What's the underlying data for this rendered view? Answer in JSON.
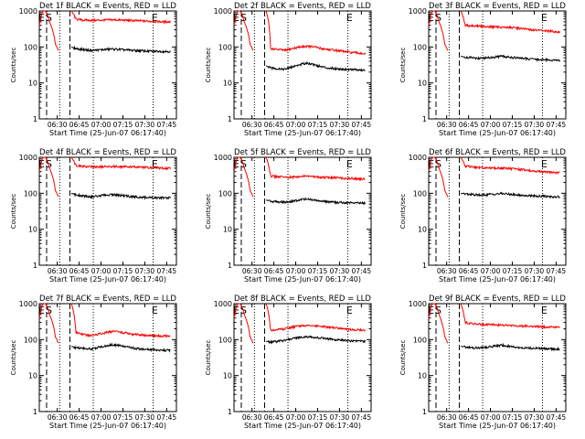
{
  "shared": {
    "ylabel": "Counts/sec",
    "xlabel": "Start Time (25-Jun-07 06:17:40)",
    "x_tick_labels": [
      "06:30",
      "06:45",
      "07:00",
      "07:15",
      "07:30",
      "07:45"
    ],
    "y_tick_labels": [
      "1",
      "10",
      "100",
      "1000"
    ],
    "marker_labels": {
      "start": "S",
      "end": "E",
      "left": "E"
    },
    "series_colors": {
      "events": "#000000",
      "lld": "#ff0000"
    }
  },
  "chart_data": [
    {
      "type": "line",
      "title": "Det 1f BLACK = Events, RED = LLD",
      "x_unit": "minutes after 06:17:40",
      "xlim": [
        0,
        94
      ],
      "ylim": [
        1,
        1000
      ],
      "yscale": "log",
      "grid": false,
      "series": [
        {
          "x": [
            0,
            1,
            2,
            3,
            4,
            5,
            6,
            7,
            9,
            11,
            13
          ],
          "y": [
            400,
            600,
            900,
            1000,
            1000,
            900,
            700,
            500,
            300,
            120,
            80
          ]
        },
        {
          "x": [
            22,
            25,
            30,
            35,
            40,
            45,
            50,
            55,
            60,
            65,
            70,
            75,
            80,
            85,
            90
          ],
          "y": [
            1000,
            600,
            560,
            550,
            550,
            560,
            570,
            560,
            550,
            540,
            530,
            520,
            510,
            500,
            500
          ]
        },
        {
          "x": [
            22,
            25,
            30,
            35,
            40,
            45,
            50,
            55,
            60,
            65,
            70,
            75,
            80,
            85,
            90
          ],
          "y": [
            100,
            90,
            85,
            80,
            82,
            85,
            88,
            85,
            82,
            80,
            78,
            76,
            76,
            75,
            75
          ]
        }
      ]
    },
    {
      "type": "line",
      "title": "Det 2f BLACK = Events, RED = LLD",
      "x_unit": "minutes after 06:17:40",
      "xlim": [
        0,
        94
      ],
      "ylim": [
        1,
        1000
      ],
      "yscale": "log",
      "grid": false,
      "series": [
        {
          "x": [
            0,
            1,
            2,
            3,
            4,
            5,
            6,
            7,
            9,
            11,
            13
          ],
          "y": [
            400,
            600,
            900,
            1000,
            1000,
            900,
            700,
            500,
            300,
            120,
            80
          ]
        },
        {
          "x": [
            22,
            25,
            30,
            35,
            40,
            45,
            50,
            55,
            60,
            65,
            70,
            75,
            80,
            85,
            90
          ],
          "y": [
            1000,
            90,
            85,
            80,
            90,
            100,
            105,
            100,
            90,
            85,
            80,
            75,
            70,
            68,
            65
          ]
        },
        {
          "x": [
            22,
            25,
            30,
            35,
            40,
            45,
            50,
            55,
            60,
            65,
            70,
            75,
            80,
            85,
            90
          ],
          "y": [
            30,
            26,
            25,
            24,
            28,
            32,
            36,
            32,
            28,
            26,
            25,
            24,
            24,
            23,
            22
          ]
        }
      ]
    },
    {
      "type": "line",
      "title": "Det 3f BLACK = Events, RED = LLD",
      "x_unit": "minutes after 06:17:40",
      "xlim": [
        0,
        94
      ],
      "ylim": [
        1,
        1000
      ],
      "yscale": "log",
      "grid": false,
      "series": [
        {
          "x": [
            0,
            1,
            2,
            3,
            4,
            5,
            6,
            7,
            9,
            11,
            13
          ],
          "y": [
            400,
            600,
            900,
            1000,
            1000,
            900,
            700,
            500,
            300,
            120,
            80
          ]
        },
        {
          "x": [
            22,
            25,
            30,
            35,
            40,
            45,
            50,
            55,
            60,
            65,
            70,
            75,
            80,
            85,
            90
          ],
          "y": [
            1000,
            400,
            390,
            380,
            370,
            360,
            355,
            350,
            340,
            320,
            300,
            290,
            280,
            270,
            260
          ]
        },
        {
          "x": [
            22,
            25,
            30,
            35,
            40,
            45,
            50,
            55,
            60,
            65,
            70,
            75,
            80,
            85,
            90
          ],
          "y": [
            55,
            52,
            50,
            48,
            50,
            52,
            55,
            52,
            50,
            48,
            46,
            45,
            44,
            43,
            42
          ]
        }
      ]
    },
    {
      "type": "line",
      "title": "Det 4f BLACK = Events, RED = LLD",
      "x_unit": "minutes after 06:17:40",
      "xlim": [
        0,
        94
      ],
      "ylim": [
        1,
        1000
      ],
      "yscale": "log",
      "grid": false,
      "series": [
        {
          "x": [
            0,
            1,
            2,
            3,
            4,
            5,
            6,
            7,
            9,
            11,
            13
          ],
          "y": [
            400,
            600,
            900,
            1000,
            1000,
            900,
            700,
            500,
            300,
            120,
            80
          ]
        },
        {
          "x": [
            22,
            25,
            30,
            35,
            40,
            45,
            50,
            55,
            60,
            65,
            70,
            75,
            80,
            85,
            90
          ],
          "y": [
            1000,
            600,
            560,
            550,
            540,
            550,
            560,
            550,
            545,
            540,
            530,
            520,
            510,
            500,
            500
          ]
        },
        {
          "x": [
            22,
            25,
            30,
            35,
            40,
            45,
            50,
            55,
            60,
            65,
            70,
            75,
            80,
            85,
            90
          ],
          "y": [
            100,
            90,
            85,
            80,
            84,
            88,
            92,
            88,
            84,
            80,
            78,
            76,
            75,
            75,
            74
          ]
        }
      ]
    },
    {
      "type": "line",
      "title": "Det 5f BLACK = Events, RED = LLD",
      "x_unit": "minutes after 06:17:40",
      "xlim": [
        0,
        94
      ],
      "ylim": [
        1,
        1000
      ],
      "yscale": "log",
      "grid": false,
      "series": [
        {
          "x": [
            0,
            1,
            2,
            3,
            4,
            5,
            6,
            7,
            9,
            11,
            13
          ],
          "y": [
            400,
            600,
            900,
            1000,
            1000,
            900,
            700,
            500,
            300,
            120,
            80
          ]
        },
        {
          "x": [
            22,
            25,
            30,
            35,
            40,
            45,
            50,
            55,
            60,
            65,
            70,
            75,
            80,
            85,
            90
          ],
          "y": [
            1000,
            300,
            290,
            280,
            280,
            290,
            300,
            290,
            280,
            275,
            270,
            265,
            260,
            255,
            250
          ]
        },
        {
          "x": [
            22,
            25,
            30,
            35,
            40,
            45,
            50,
            55,
            60,
            65,
            70,
            75,
            80,
            85,
            90
          ],
          "y": [
            65,
            60,
            58,
            56,
            60,
            65,
            70,
            65,
            60,
            58,
            56,
            55,
            55,
            54,
            54
          ]
        }
      ]
    },
    {
      "type": "line",
      "title": "Det 6f BLACK = Events, RED = LLD",
      "x_unit": "minutes after 06:17:40",
      "xlim": [
        0,
        94
      ],
      "ylim": [
        1,
        1000
      ],
      "yscale": "log",
      "grid": false,
      "series": [
        {
          "x": [
            0,
            1,
            2,
            3,
            4,
            5,
            6,
            7,
            9,
            11,
            13
          ],
          "y": [
            400,
            600,
            900,
            1000,
            1000,
            900,
            700,
            500,
            300,
            120,
            80
          ]
        },
        {
          "x": [
            22,
            25,
            30,
            35,
            40,
            45,
            50,
            55,
            60,
            65,
            70,
            75,
            80,
            85,
            90
          ],
          "y": [
            1000,
            560,
            540,
            520,
            510,
            505,
            500,
            490,
            470,
            450,
            420,
            400,
            390,
            380,
            370
          ]
        },
        {
          "x": [
            22,
            25,
            30,
            35,
            40,
            45,
            50,
            55,
            60,
            65,
            70,
            75,
            80,
            85,
            90
          ],
          "y": [
            100,
            95,
            92,
            90,
            92,
            95,
            98,
            95,
            90,
            87,
            85,
            84,
            82,
            81,
            80
          ]
        }
      ]
    },
    {
      "type": "line",
      "title": "Det 7f BLACK = Events, RED = LLD",
      "x_unit": "minutes after 06:17:40",
      "xlim": [
        0,
        94
      ],
      "ylim": [
        1,
        1000
      ],
      "yscale": "log",
      "grid": false,
      "series": [
        {
          "x": [
            0,
            1,
            2,
            3,
            4,
            5,
            6,
            7,
            9,
            11,
            13
          ],
          "y": [
            400,
            600,
            900,
            1000,
            1000,
            900,
            700,
            500,
            300,
            120,
            80
          ]
        },
        {
          "x": [
            22,
            25,
            30,
            35,
            40,
            45,
            50,
            55,
            60,
            65,
            70,
            75,
            80,
            85,
            90
          ],
          "y": [
            1000,
            160,
            140,
            130,
            140,
            155,
            170,
            160,
            150,
            140,
            135,
            130,
            128,
            126,
            125
          ]
        },
        {
          "x": [
            22,
            25,
            30,
            35,
            40,
            45,
            50,
            55,
            60,
            65,
            70,
            75,
            80,
            85,
            90
          ],
          "y": [
            65,
            60,
            58,
            55,
            60,
            66,
            72,
            68,
            62,
            58,
            55,
            53,
            52,
            51,
            50
          ]
        }
      ]
    },
    {
      "type": "line",
      "title": "Det 8f BLACK = Events, RED = LLD",
      "x_unit": "minutes after 06:17:40",
      "xlim": [
        0,
        94
      ],
      "ylim": [
        1,
        1000
      ],
      "yscale": "log",
      "grid": false,
      "series": [
        {
          "x": [
            0,
            1,
            2,
            3,
            4,
            5,
            6,
            7,
            9,
            11,
            13
          ],
          "y": [
            400,
            600,
            900,
            1000,
            1000,
            900,
            700,
            500,
            300,
            120,
            80
          ]
        },
        {
          "x": [
            22,
            25,
            30,
            35,
            40,
            45,
            50,
            55,
            60,
            65,
            70,
            75,
            80,
            85,
            90
          ],
          "y": [
            1000,
            180,
            190,
            200,
            220,
            240,
            250,
            240,
            230,
            220,
            210,
            200,
            190,
            185,
            180
          ]
        },
        {
          "x": [
            22,
            25,
            30,
            35,
            40,
            45,
            50,
            55,
            60,
            65,
            70,
            75,
            80,
            85,
            90
          ],
          "y": [
            90,
            85,
            90,
            95,
            105,
            115,
            120,
            115,
            110,
            105,
            100,
            96,
            92,
            90,
            90
          ]
        }
      ]
    },
    {
      "type": "line",
      "title": "Det 9f BLACK = Events, RED = LLD",
      "x_unit": "minutes after 06:17:40",
      "xlim": [
        0,
        94
      ],
      "ylim": [
        1,
        1000
      ],
      "yscale": "log",
      "grid": false,
      "series": [
        {
          "x": [
            0,
            1,
            2,
            3,
            4,
            5,
            6,
            7,
            9,
            11,
            13
          ],
          "y": [
            400,
            600,
            900,
            1000,
            1000,
            900,
            700,
            500,
            300,
            120,
            80
          ]
        },
        {
          "x": [
            22,
            25,
            30,
            35,
            40,
            45,
            50,
            55,
            60,
            65,
            70,
            75,
            80,
            85,
            90
          ],
          "y": [
            1000,
            300,
            280,
            270,
            260,
            260,
            255,
            250,
            245,
            240,
            235,
            230,
            228,
            225,
            225
          ]
        },
        {
          "x": [
            22,
            25,
            30,
            35,
            40,
            45,
            50,
            55,
            60,
            65,
            70,
            75,
            80,
            85,
            90
          ],
          "y": [
            65,
            62,
            60,
            58,
            62,
            66,
            70,
            66,
            62,
            60,
            58,
            57,
            56,
            55,
            55
          ]
        }
      ]
    }
  ]
}
